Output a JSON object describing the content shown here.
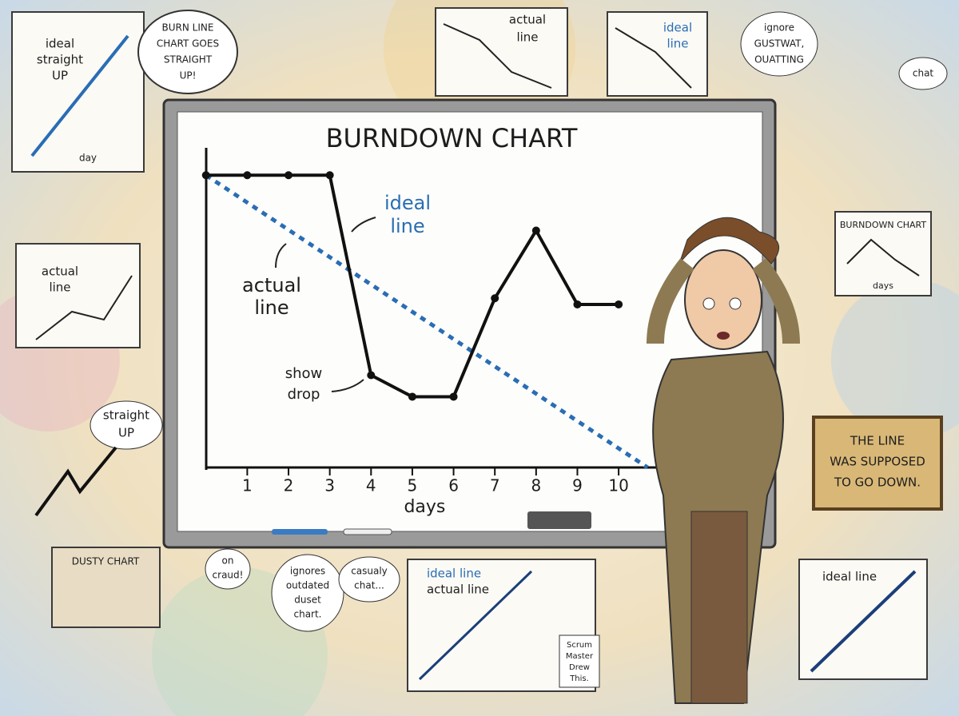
{
  "chart_data": {
    "type": "line",
    "title": "BURNDOWN CHART",
    "x_label": "days",
    "xlim": [
      -0.15,
      10.85
    ],
    "ylim": [
      0,
      10
    ],
    "xticks": [
      1,
      2,
      3,
      4,
      5,
      6,
      7,
      8,
      9,
      10
    ],
    "series": [
      {
        "name": "ideal line",
        "color": "#2a6db5",
        "dashed": true,
        "x": [
          0,
          10.7
        ],
        "values": [
          9.5,
          0
        ]
      },
      {
        "name": "actual line",
        "color": "#111111",
        "dashed": false,
        "x": [
          0,
          1,
          2,
          3,
          4,
          5,
          6,
          7,
          8,
          9,
          10
        ],
        "values": [
          9.5,
          9.5,
          9.5,
          9.5,
          3,
          2.3,
          2.3,
          5.5,
          7.7,
          5.3,
          5.3
        ]
      }
    ],
    "annotations": [
      [
        "ideal",
        "line"
      ],
      [
        "actual",
        "line"
      ],
      [
        "show",
        "drop"
      ]
    ]
  },
  "notes": [
    [
      "ideal",
      "straight",
      "UP"
    ],
    [
      "day"
    ],
    [
      "BURN LINE",
      "CHART GOES",
      "STRAIGHT",
      "UP!"
    ],
    [
      "actual",
      "line"
    ],
    [
      "ideal",
      "line"
    ],
    [
      "ignore",
      "GUSTWAT,",
      "OUATTING"
    ],
    [
      "chat"
    ],
    [
      "actual",
      "line"
    ],
    [
      "straight",
      "UP"
    ],
    [
      "BURNDOWN CHART"
    ],
    [
      "days"
    ],
    [
      "THE LINE",
      "WAS SUPPOSED",
      "TO GO DOWN."
    ],
    [
      "DUSTY CHART"
    ],
    [
      "on",
      "craud!"
    ],
    [
      "ignores",
      "outdated",
      "duset",
      "chart."
    ],
    [
      "casualy",
      "chat..."
    ],
    [
      "ideal line",
      "actual line"
    ],
    [
      "Scrum",
      "Master",
      "Drew",
      "This."
    ],
    [
      "ideal line"
    ]
  ]
}
